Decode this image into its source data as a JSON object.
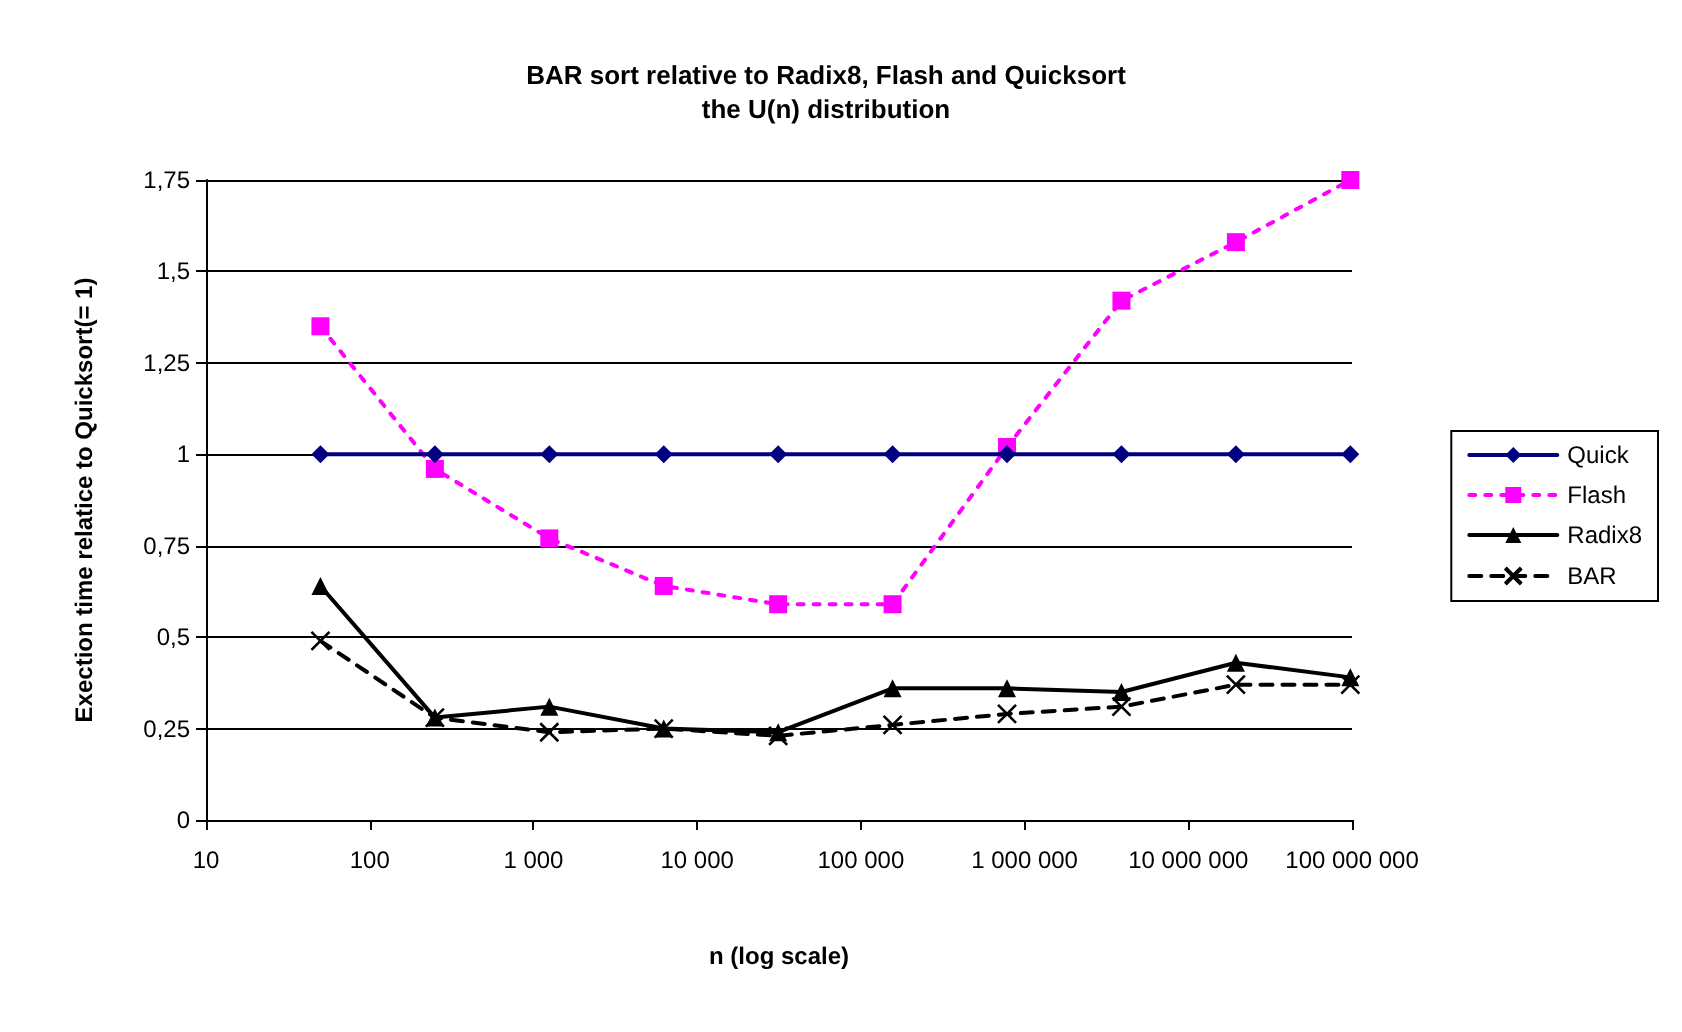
{
  "chart_data": {
    "type": "line",
    "title": "BAR sort relative to Radix8, Flash and Quicksort",
    "subtitle": "the U(n) distribution",
    "xlabel": "n (log scale)",
    "ylabel": "Exection time relatice to Quicksort(= 1)",
    "x": [
      50,
      250,
      1250,
      6250,
      31250,
      156250,
      781250,
      3906250,
      19531250,
      97656250
    ],
    "series": [
      {
        "name": "Quick",
        "color": "#000080",
        "marker": "diamond",
        "line_style": "solid",
        "values": [
          1,
          1,
          1,
          1,
          1,
          1,
          1,
          1,
          1,
          1
        ]
      },
      {
        "name": "Flash",
        "color": "#ff00ff",
        "marker": "square",
        "line_style": "dotted",
        "values": [
          1.35,
          0.96,
          0.77,
          0.64,
          0.59,
          0.59,
          1.02,
          1.42,
          1.58,
          1.75
        ]
      },
      {
        "name": "Radix8",
        "color": "#000000",
        "marker": "triangle",
        "line_style": "solid",
        "values": [
          0.64,
          0.28,
          0.31,
          0.25,
          0.24,
          0.36,
          0.36,
          0.35,
          0.43,
          0.39
        ]
      },
      {
        "name": "BAR",
        "color": "#000000",
        "marker": "cross",
        "line_style": "dashed",
        "values": [
          0.49,
          0.28,
          0.24,
          0.25,
          0.23,
          0.26,
          0.29,
          0.31,
          0.37,
          0.37
        ]
      }
    ],
    "log": "x",
    "xlim": [
      10,
      100000000
    ],
    "xticks": [
      10,
      100,
      {
        "value": 1000,
        "label": "1 000"
      },
      {
        "value": 10000,
        "label": "10 000"
      },
      {
        "value": 100000,
        "label": "100 000"
      },
      {
        "value": 1000000,
        "label": "1 000 000"
      },
      {
        "value": 10000000,
        "label": "10 000 000"
      },
      {
        "value": 100000000,
        "label": "100 000 000"
      }
    ],
    "ylim": [
      0,
      1.75
    ],
    "yticks": [
      0,
      {
        "value": 0.25,
        "label": "0,25"
      },
      {
        "value": 0.5,
        "label": "0,5"
      },
      {
        "value": 0.75,
        "label": "0,75"
      },
      1,
      {
        "value": 1.25,
        "label": "1,25"
      },
      {
        "value": 1.5,
        "label": "1,5"
      },
      {
        "value": 1.75,
        "label": "1,75"
      }
    ],
    "grid": "y",
    "legend": "right"
  }
}
